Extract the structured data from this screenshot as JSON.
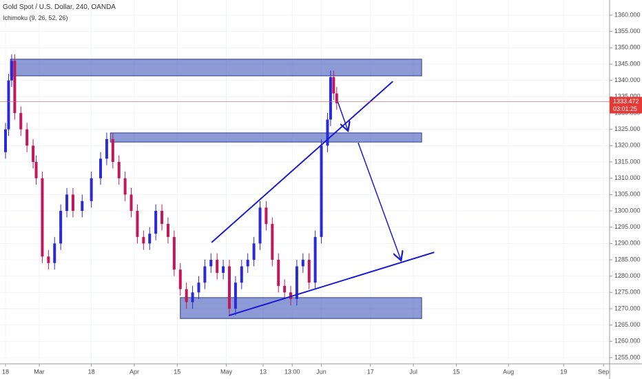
{
  "header": {
    "title": "Gold Spot / U.S. Dollar, 240, OANDA",
    "indicator": "Ichimoku (9, 26, 52, 26)"
  },
  "chart_data": {
    "type": "candlestick",
    "x": [
      0,
      1,
      2,
      3,
      5,
      7,
      9,
      10,
      12,
      14,
      16,
      18,
      20,
      22,
      25,
      28,
      31,
      33,
      35,
      37,
      39,
      41,
      43,
      45,
      47,
      49,
      51,
      53,
      55,
      57,
      59,
      61,
      63,
      65,
      67,
      69,
      71,
      73,
      75,
      77,
      79,
      81,
      83,
      85,
      87,
      89,
      91,
      93,
      95,
      97,
      99,
      101,
      103,
      105,
      106,
      107,
      108
    ],
    "open": [
      1318,
      1325,
      1340,
      1346,
      1330,
      1325,
      1320,
      1315,
      1310,
      1286,
      1284,
      1290,
      1300,
      1305,
      1300,
      1303,
      1310,
      1316,
      1322,
      1315,
      1310,
      1305,
      1300,
      1292,
      1290,
      1293,
      1300,
      1296,
      1292,
      1282,
      1276,
      1272,
      1275,
      1278,
      1283,
      1285,
      1281,
      1283,
      1270,
      1278,
      1283,
      1285,
      1290,
      1301,
      1296,
      1285,
      1277,
      1275,
      1273,
      1283,
      1285,
      1278,
      1292,
      1320,
      1328,
      1341,
      1336
    ],
    "high": [
      1327,
      1342,
      1348,
      1348,
      1332,
      1327,
      1322,
      1317,
      1312,
      1288,
      1292,
      1302,
      1307,
      1307,
      1305,
      1312,
      1318,
      1324,
      1324,
      1317,
      1312,
      1307,
      1302,
      1294,
      1295,
      1302,
      1302,
      1298,
      1294,
      1284,
      1278,
      1277,
      1280,
      1285,
      1287,
      1287,
      1285,
      1285,
      1280,
      1285,
      1287,
      1292,
      1303,
      1303,
      1298,
      1287,
      1279,
      1277,
      1285,
      1287,
      1287,
      1294,
      1322,
      1330,
      1343,
      1343,
      1338
    ],
    "low": [
      1316,
      1323,
      1338,
      1328,
      1323,
      1318,
      1313,
      1308,
      1284,
      1282,
      1282,
      1288,
      1298,
      1298,
      1298,
      1301,
      1308,
      1314,
      1313,
      1308,
      1303,
      1298,
      1290,
      1288,
      1288,
      1291,
      1294,
      1290,
      1280,
      1274,
      1270,
      1270,
      1273,
      1276,
      1281,
      1279,
      1279,
      1268,
      1268,
      1276,
      1281,
      1283,
      1288,
      1294,
      1283,
      1275,
      1273,
      1271,
      1271,
      1281,
      1276,
      1276,
      1290,
      1318,
      1326,
      1334,
      1331
    ],
    "close": [
      1325,
      1340,
      1346,
      1330,
      1325,
      1320,
      1315,
      1310,
      1286,
      1284,
      1290,
      1300,
      1305,
      1300,
      1303,
      1310,
      1316,
      1322,
      1315,
      1310,
      1305,
      1300,
      1292,
      1290,
      1293,
      1300,
      1296,
      1292,
      1282,
      1276,
      1272,
      1275,
      1278,
      1283,
      1285,
      1281,
      1283,
      1270,
      1278,
      1283,
      1285,
      1290,
      1301,
      1296,
      1285,
      1277,
      1275,
      1273,
      1283,
      1285,
      1278,
      1292,
      1320,
      1328,
      1341,
      1336,
      1333
    ],
    "up_color": "#2a2ad6",
    "down_color": "#c2185b",
    "xlim": [
      -1.8,
      197
    ],
    "xticks": [
      {
        "value": 0,
        "label": "18"
      },
      {
        "value": 11,
        "label": "Mar"
      },
      {
        "value": 28,
        "label": "18"
      },
      {
        "value": 42,
        "label": "Apr"
      },
      {
        "value": 56,
        "label": "15"
      },
      {
        "value": 72,
        "label": "May"
      },
      {
        "value": 84,
        "label": "13"
      },
      {
        "value": 93.5,
        "label": "13:00"
      },
      {
        "value": 103,
        "label": "Jun"
      },
      {
        "value": 119,
        "label": "17"
      },
      {
        "value": 133,
        "label": "Jul"
      },
      {
        "value": 147,
        "label": "15"
      },
      {
        "value": 164,
        "label": "Aug"
      },
      {
        "value": 182,
        "label": "19"
      },
      {
        "value": 195,
        "label": "Sep"
      }
    ],
    "ylim": [
      1253.1,
      1364.65
    ],
    "yticks": [
      {
        "value": 1255,
        "label": "1255.000"
      },
      {
        "value": 1260,
        "label": "1260.000"
      },
      {
        "value": 1265,
        "label": "1265.000"
      },
      {
        "value": 1270,
        "label": "1270.000"
      },
      {
        "value": 1275,
        "label": "1275.000"
      },
      {
        "value": 1280,
        "label": "1280.000"
      },
      {
        "value": 1285,
        "label": "1285.000"
      },
      {
        "value": 1290,
        "label": "1290.000"
      },
      {
        "value": 1295,
        "label": "1295.000"
      },
      {
        "value": 1300,
        "label": "1300.000"
      },
      {
        "value": 1305,
        "label": "1305.000"
      },
      {
        "value": 1310,
        "label": "1310.000"
      },
      {
        "value": 1315,
        "label": "1315.000"
      },
      {
        "value": 1320,
        "label": "1320.000"
      },
      {
        "value": 1325,
        "label": "1325.000"
      },
      {
        "value": 1330,
        "label": "1330.000"
      },
      {
        "value": 1335,
        "label": "1335.000"
      },
      {
        "value": 1340,
        "label": "1340.000"
      },
      {
        "value": 1345,
        "label": "1345.000"
      },
      {
        "value": 1350,
        "label": "1350.000"
      },
      {
        "value": 1355,
        "label": "1355.000"
      },
      {
        "value": 1360,
        "label": "1360.000"
      }
    ],
    "grid": true,
    "last_price": 1333.472,
    "countdown": "03:01:25",
    "zones": [
      {
        "x0": 1.6,
        "x1": 135.7,
        "y0": 1341.4,
        "y1": 1346.5
      },
      {
        "x0": 34.2,
        "x1": 135.7,
        "y0": 1321.1,
        "y1": 1323.9
      },
      {
        "x0": 57,
        "x1": 135.7,
        "y0": 1267,
        "y1": 1273.4
      }
    ],
    "lines": [
      {
        "x0": 67.2,
        "y0": 1290.3,
        "x1": 126.3,
        "y1": 1339.7
      },
      {
        "x0": 72.8,
        "y0": 1267.9,
        "x1": 139.8,
        "y1": 1287.3
      }
    ],
    "arrows": [
      {
        "x0": 108.3,
        "y0": 1333.6,
        "x1": 111.7,
        "y1": 1324.5
      },
      {
        "x0": 115,
        "y0": 1320.9,
        "x1": 129,
        "y1": 1284.8
      }
    ]
  }
}
